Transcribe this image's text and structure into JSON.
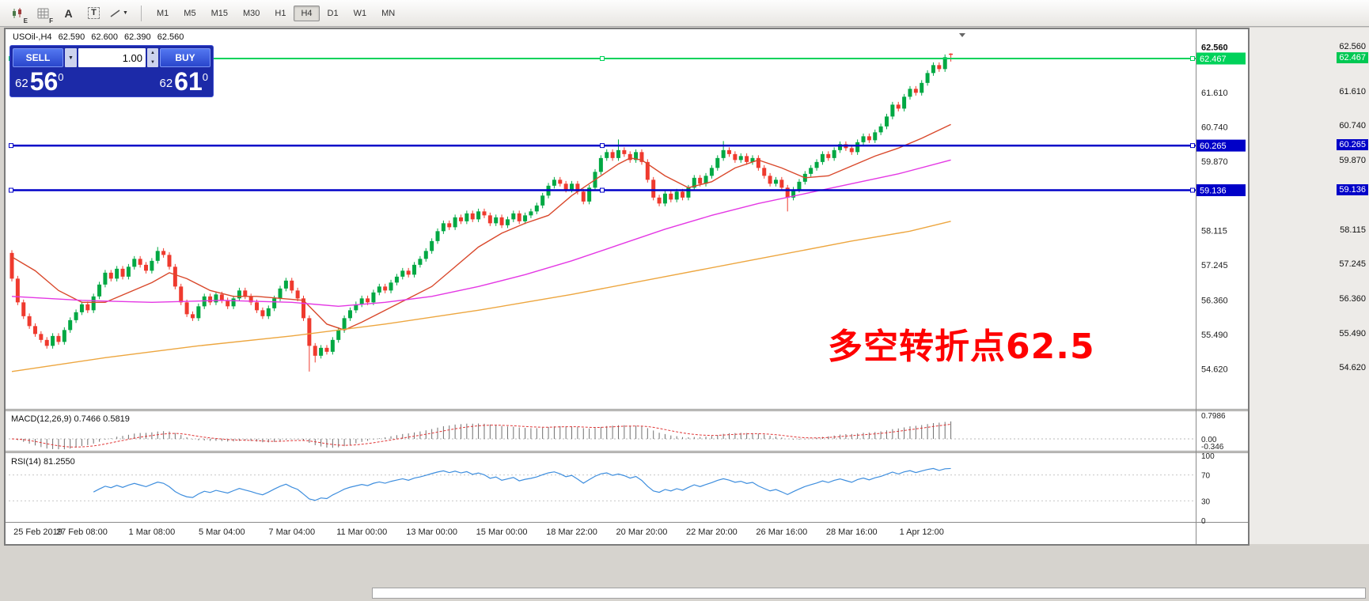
{
  "toolbar": {
    "tools": [
      {
        "name": "candlestick-tool",
        "sub": "E"
      },
      {
        "name": "grid-tool",
        "sub": "F"
      },
      {
        "name": "text-tool",
        "label": "A"
      },
      {
        "name": "textbox-tool",
        "label": "T"
      },
      {
        "name": "line-style-tool"
      }
    ],
    "timeframes": [
      "M1",
      "M5",
      "M15",
      "M30",
      "H1",
      "H4",
      "D1",
      "W1",
      "MN"
    ],
    "active_timeframe": "H4"
  },
  "symbol_header": {
    "symbol": "USOil-,H4",
    "open": "62.590",
    "high": "62.600",
    "low": "62.390",
    "close": "62.560"
  },
  "trade_panel": {
    "sell": "SELL",
    "buy": "BUY",
    "volume": "1.00",
    "bid": {
      "pre": "62",
      "big": "56",
      "sup": "0"
    },
    "ask": {
      "pre": "62",
      "big": "61",
      "sup": "0"
    }
  },
  "annotation": {
    "text": "多空转折点62.5",
    "color": "#ff0000"
  },
  "price_scale": {
    "top_label": "62.560",
    "levels": [
      "61.610",
      "60.740",
      "59.870",
      "58.115",
      "57.245",
      "56.360",
      "55.490",
      "54.620"
    ]
  },
  "right_strip": {
    "labels": [
      {
        "text": "62.560",
        "style": "plain"
      },
      {
        "text": "62.467",
        "style": "green"
      },
      {
        "text": "61.610",
        "style": "plain"
      },
      {
        "text": "60.740",
        "style": "plain"
      },
      {
        "text": "60.265",
        "style": "blue"
      },
      {
        "text": "59.870",
        "style": "plain"
      },
      {
        "text": "59.136",
        "style": "blue"
      },
      {
        "text": "58.115",
        "style": "plain"
      },
      {
        "text": "57.245",
        "style": "plain"
      },
      {
        "text": "56.360",
        "style": "plain"
      },
      {
        "text": "55.490",
        "style": "plain"
      },
      {
        "text": "54.620",
        "style": "plain"
      }
    ]
  },
  "macd_panel": {
    "title": "MACD(12,26,9)",
    "values": "0.7466 0.5819",
    "scale_top": "0.7986",
    "scale_zero": "0.00",
    "scale_bottom": "-0.346"
  },
  "rsi_panel": {
    "title": "RSI(14)",
    "value": "81.2550",
    "scale": [
      "100",
      "70",
      "30",
      "0"
    ]
  },
  "chart_data": {
    "type": "candlestick",
    "symbol": "USOil-",
    "timeframe": "H4",
    "up_color": "#00A843",
    "down_color": "#EF3A2E",
    "first_open": 57.55,
    "default_wick": 0.07,
    "closes": [
      56.9,
      56.3,
      55.95,
      55.7,
      55.5,
      55.35,
      55.2,
      55.45,
      55.3,
      55.6,
      55.85,
      56.05,
      56.25,
      56.1,
      56.45,
      56.75,
      57.05,
      56.9,
      57.15,
      56.95,
      57.2,
      57.4,
      57.25,
      57.1,
      57.35,
      57.6,
      57.5,
      57.2,
      56.7,
      56.3,
      56.0,
      55.9,
      56.2,
      56.45,
      56.3,
      56.5,
      56.35,
      56.2,
      56.4,
      56.6,
      56.45,
      56.3,
      56.1,
      55.95,
      56.15,
      56.4,
      56.65,
      56.85,
      56.6,
      56.4,
      55.9,
      55.2,
      54.95,
      55.15,
      55.05,
      55.35,
      55.6,
      55.9,
      56.1,
      56.25,
      56.4,
      56.3,
      56.55,
      56.7,
      56.6,
      56.8,
      56.95,
      57.1,
      57.0,
      57.25,
      57.4,
      57.6,
      57.85,
      58.1,
      58.3,
      58.2,
      58.45,
      58.35,
      58.55,
      58.4,
      58.6,
      58.5,
      58.3,
      58.45,
      58.25,
      58.4,
      58.55,
      58.35,
      58.5,
      58.6,
      58.75,
      59.0,
      59.25,
      59.4,
      59.3,
      59.15,
      59.3,
      59.1,
      58.85,
      59.2,
      59.6,
      59.95,
      60.1,
      59.95,
      60.15,
      60.05,
      59.9,
      60.1,
      59.85,
      59.4,
      58.95,
      58.8,
      59.05,
      58.9,
      59.1,
      58.95,
      59.2,
      59.45,
      59.3,
      59.5,
      59.7,
      59.95,
      60.15,
      60.05,
      59.9,
      60.0,
      59.85,
      59.95,
      59.7,
      59.5,
      59.3,
      59.4,
      59.2,
      58.95,
      59.15,
      59.35,
      59.55,
      59.7,
      59.85,
      60.05,
      59.95,
      60.15,
      60.3,
      60.2,
      60.1,
      60.35,
      60.5,
      60.4,
      60.6,
      60.75,
      61.0,
      61.3,
      61.2,
      61.5,
      61.7,
      61.6,
      61.85,
      62.1,
      62.3,
      62.2,
      62.5,
      62.56
    ],
    "last_candle": {
      "open": 62.59,
      "high": 62.6,
      "low": 62.39,
      "close": 62.56
    },
    "special_wicks": {
      "0": {
        "high": 57.62
      },
      "25": {
        "high": 57.7
      },
      "51": {
        "low": 54.55
      },
      "52": {
        "low": 54.78
      },
      "104": {
        "high": 60.42
      },
      "122": {
        "high": 60.38
      },
      "133": {
        "low": 58.6
      }
    },
    "hlines": [
      {
        "price": 62.467,
        "color": "#00D25A",
        "label": "62.467",
        "width": 2
      },
      {
        "price": 60.265,
        "color": "#0000C8",
        "label": "60.265",
        "width": 2.5
      },
      {
        "price": 59.136,
        "color": "#0000C8",
        "label": "59.136",
        "width": 2.5
      }
    ],
    "overlays": [
      {
        "name": "ma-fast",
        "color": "#D9482B",
        "points": [
          [
            0,
            57.45
          ],
          [
            4,
            57.1
          ],
          [
            8,
            56.6
          ],
          [
            12,
            56.3
          ],
          [
            16,
            56.3
          ],
          [
            20,
            56.55
          ],
          [
            24,
            56.8
          ],
          [
            27,
            57.05
          ],
          [
            30,
            56.9
          ],
          [
            34,
            56.6
          ],
          [
            38,
            56.45
          ],
          [
            42,
            56.45
          ],
          [
            46,
            56.4
          ],
          [
            50,
            56.35
          ],
          [
            52,
            56.05
          ],
          [
            54,
            55.75
          ],
          [
            57,
            55.6
          ],
          [
            60,
            55.8
          ],
          [
            64,
            56.1
          ],
          [
            68,
            56.4
          ],
          [
            72,
            56.7
          ],
          [
            76,
            57.2
          ],
          [
            80,
            57.7
          ],
          [
            84,
            58.05
          ],
          [
            88,
            58.3
          ],
          [
            92,
            58.5
          ],
          [
            96,
            59.0
          ],
          [
            100,
            59.4
          ],
          [
            104,
            59.8
          ],
          [
            106,
            59.95
          ],
          [
            108,
            59.9
          ],
          [
            112,
            59.5
          ],
          [
            116,
            59.2
          ],
          [
            120,
            59.35
          ],
          [
            124,
            59.7
          ],
          [
            128,
            59.9
          ],
          [
            132,
            59.7
          ],
          [
            136,
            59.45
          ],
          [
            140,
            59.5
          ],
          [
            144,
            59.75
          ],
          [
            148,
            60.0
          ],
          [
            152,
            60.2
          ],
          [
            156,
            60.45
          ],
          [
            161,
            60.8
          ]
        ]
      },
      {
        "name": "ma-mid",
        "color": "#E438E4",
        "points": [
          [
            0,
            56.45
          ],
          [
            12,
            56.35
          ],
          [
            24,
            56.3
          ],
          [
            36,
            56.35
          ],
          [
            48,
            56.3
          ],
          [
            56,
            56.2
          ],
          [
            64,
            56.3
          ],
          [
            72,
            56.45
          ],
          [
            80,
            56.7
          ],
          [
            88,
            57.0
          ],
          [
            96,
            57.35
          ],
          [
            104,
            57.75
          ],
          [
            112,
            58.15
          ],
          [
            120,
            58.5
          ],
          [
            128,
            58.8
          ],
          [
            136,
            59.05
          ],
          [
            144,
            59.3
          ],
          [
            152,
            59.55
          ],
          [
            161,
            59.9
          ]
        ]
      },
      {
        "name": "ma-slow",
        "color": "#EDA63F",
        "points": [
          [
            0,
            54.55
          ],
          [
            16,
            54.9
          ],
          [
            32,
            55.2
          ],
          [
            48,
            55.45
          ],
          [
            64,
            55.75
          ],
          [
            80,
            56.1
          ],
          [
            96,
            56.5
          ],
          [
            112,
            56.95
          ],
          [
            128,
            57.4
          ],
          [
            144,
            57.85
          ],
          [
            154,
            58.1
          ],
          [
            161,
            58.35
          ]
        ]
      }
    ],
    "indicators": {
      "macd": {
        "fast": 12,
        "slow": 26,
        "signal": 9
      },
      "rsi": {
        "period": 14
      }
    },
    "time_labels": [
      "25 Feb 2019",
      "27 Feb 08:00",
      "1 Mar 08:00",
      "5 Mar 04:00",
      "7 Mar 04:00",
      "11 Mar 00:00",
      "13 Mar 00:00",
      "15 Mar 00:00",
      "18 Mar 22:00",
      "20 Mar 20:00",
      "22 Mar 20:00",
      "26 Mar 16:00",
      "28 Mar 16:00",
      "1 Apr 12:00"
    ]
  }
}
